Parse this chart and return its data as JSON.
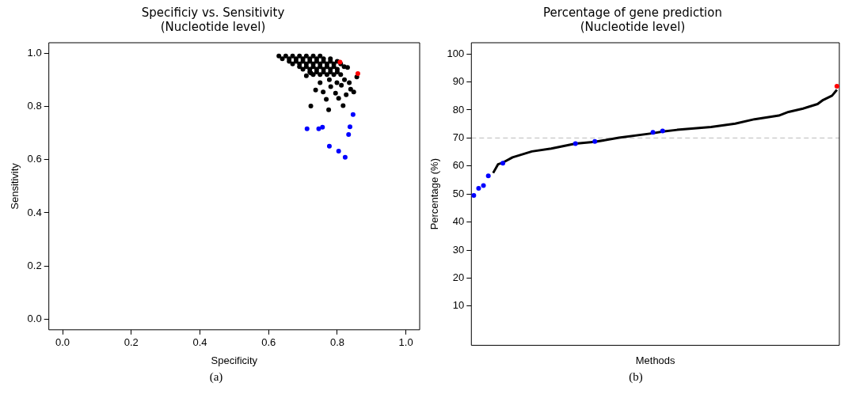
{
  "chart_data": [
    {
      "type": "scatter",
      "title": "Specificiy vs. Sensitivity",
      "subtitle": "(Nucleotide level)",
      "xlabel": "Specificity",
      "ylabel": "Sensitivity",
      "xlim": [
        -0.04,
        1.04
      ],
      "ylim": [
        -0.04,
        1.04
      ],
      "xticks": [
        {
          "value": 0,
          "label": "0.0"
        },
        0.2,
        0.4,
        0.6,
        0.8,
        {
          "value": 1,
          "label": "1.0"
        }
      ],
      "yticks": [
        {
          "value": 0,
          "label": "0.0"
        },
        0.2,
        0.4,
        0.6,
        0.8,
        {
          "value": 1,
          "label": "1.0"
        }
      ],
      "grid": false,
      "legend": false,
      "marker": "circle",
      "annotations": [
        "(a)"
      ],
      "series": [
        {
          "color": "#000000",
          "x": [
            0.63,
            0.65,
            0.67,
            0.69,
            0.71,
            0.73,
            0.75,
            0.64,
            0.66,
            0.68,
            0.7,
            0.72,
            0.74,
            0.76,
            0.78,
            0.66,
            0.68,
            0.7,
            0.72,
            0.74,
            0.76,
            0.78,
            0.8,
            0.67,
            0.69,
            0.71,
            0.73,
            0.75,
            0.77,
            0.79,
            0.81,
            0.69,
            0.71,
            0.73,
            0.75,
            0.77,
            0.79,
            0.82,
            0.7,
            0.72,
            0.74,
            0.76,
            0.78,
            0.8,
            0.72,
            0.74,
            0.76,
            0.78,
            0.8,
            0.73,
            0.75,
            0.77,
            0.79,
            0.81,
            0.723,
            0.775,
            0.817,
            0.848,
            0.857,
            0.83,
            0.737,
            0.768,
            0.804,
            0.795,
            0.826,
            0.839,
            0.812,
            0.799,
            0.781,
            0.759,
            0.75,
            0.71,
            0.723,
            0.777,
            0.821,
            0.835
          ],
          "values": [
            0.99,
            0.99,
            0.99,
            0.99,
            0.99,
            0.99,
            0.99,
            0.98,
            0.98,
            0.98,
            0.98,
            0.98,
            0.98,
            0.98,
            0.98,
            0.97,
            0.97,
            0.97,
            0.97,
            0.97,
            0.97,
            0.97,
            0.97,
            0.96,
            0.96,
            0.96,
            0.96,
            0.96,
            0.96,
            0.96,
            0.96,
            0.95,
            0.95,
            0.95,
            0.95,
            0.95,
            0.95,
            0.95,
            0.94,
            0.94,
            0.94,
            0.94,
            0.94,
            0.94,
            0.93,
            0.93,
            0.93,
            0.93,
            0.93,
            0.92,
            0.92,
            0.92,
            0.92,
            0.92,
            0.802,
            0.788,
            0.803,
            0.855,
            0.911,
            0.947,
            0.862,
            0.827,
            0.831,
            0.85,
            0.844,
            0.865,
            0.88,
            0.89,
            0.875,
            0.855,
            0.89,
            0.916,
            0.926,
            0.901,
            0.901,
            0.89
          ]
        },
        {
          "color": "#0000ff",
          "x": [
            0.712,
            0.746,
            0.757,
            0.846,
            0.837,
            0.833,
            0.777,
            0.804,
            0.823
          ],
          "values": [
            0.716,
            0.716,
            0.722,
            0.77,
            0.724,
            0.695,
            0.651,
            0.632,
            0.609
          ]
        },
        {
          "color": "#ff0000",
          "x": [
            0.808,
            0.86
          ],
          "values": [
            0.967,
            0.924
          ]
        }
      ]
    },
    {
      "type": "line",
      "title": "Percentage of gene prediction",
      "subtitle": "(Nucleotide level)",
      "xlabel": "Methods",
      "ylabel": "Percentage (%)",
      "ylim": [
        -4,
        104
      ],
      "yticks": [
        10,
        20,
        30,
        40,
        50,
        60,
        70,
        80,
        90,
        100
      ],
      "tick_labels": "y",
      "grid": false,
      "legend": false,
      "annotations": [
        "(b)"
      ],
      "ref_lines": [
        {
          "axis": "y",
          "value": 70,
          "color": "#bbbbbb",
          "line_style": "dashed"
        }
      ],
      "categories": [
        null,
        null,
        null,
        null,
        null,
        null,
        null,
        null,
        null,
        null,
        null,
        null,
        null,
        null,
        null,
        null,
        null,
        null,
        null,
        null,
        null,
        null,
        null,
        null,
        null,
        null,
        null,
        null,
        null,
        null,
        null,
        null,
        null,
        null,
        null,
        null,
        null,
        null,
        null,
        null,
        null,
        null,
        null,
        null,
        null,
        null,
        null,
        null,
        null,
        null,
        null,
        null,
        null,
        null,
        null,
        null,
        null,
        null,
        null,
        null,
        null,
        null,
        null,
        null,
        null,
        null,
        null,
        null,
        null,
        null,
        null,
        null,
        null,
        null,
        null,
        null
      ],
      "series": [
        {
          "color": "#000000",
          "marker": "none",
          "values": [
            null,
            null,
            null,
            null,
            57.5,
            60.6,
            61.2,
            null,
            63.1,
            null,
            null,
            null,
            65.2,
            null,
            null,
            null,
            66.2,
            null,
            null,
            null,
            null,
            68,
            null,
            null,
            null,
            68.6,
            null,
            null,
            null,
            null,
            70.1,
            null,
            null,
            null,
            null,
            null,
            null,
            71.7,
            null,
            72.3,
            null,
            null,
            72.9,
            null,
            null,
            null,
            null,
            null,
            null,
            73.9,
            null,
            null,
            null,
            null,
            75.1,
            null,
            null,
            null,
            76.7,
            null,
            null,
            null,
            null,
            78,
            null,
            79.3,
            null,
            null,
            80.5,
            null,
            null,
            82.1,
            83.4,
            null,
            85.1,
            87.2
          ]
        },
        {
          "type": "scatter",
          "color": "#0000ff",
          "marker": "circle",
          "values": [
            49.5,
            52,
            53,
            56.5,
            null,
            null,
            61,
            null,
            null,
            null,
            null,
            null,
            null,
            null,
            null,
            null,
            null,
            null,
            null,
            null,
            null,
            68,
            null,
            null,
            null,
            68.8,
            null,
            null,
            null,
            null,
            null,
            null,
            null,
            null,
            null,
            null,
            null,
            72,
            null,
            72.5,
            null,
            null,
            null,
            null,
            null,
            null,
            null,
            null,
            null,
            null,
            null,
            null,
            null,
            null,
            null,
            null,
            null,
            null,
            null,
            null,
            null,
            null,
            null,
            null,
            null,
            null,
            null,
            null,
            null,
            null,
            null,
            null,
            null,
            null,
            null,
            null
          ]
        },
        {
          "type": "scatter",
          "color": "#ff0000",
          "marker": "circle",
          "values": [
            null,
            null,
            null,
            null,
            null,
            null,
            null,
            null,
            null,
            null,
            null,
            null,
            null,
            null,
            null,
            null,
            null,
            null,
            null,
            null,
            null,
            null,
            null,
            null,
            null,
            null,
            null,
            null,
            null,
            null,
            null,
            null,
            null,
            null,
            null,
            null,
            null,
            null,
            null,
            null,
            null,
            null,
            null,
            null,
            null,
            null,
            null,
            null,
            null,
            null,
            null,
            null,
            null,
            null,
            null,
            null,
            null,
            null,
            null,
            null,
            null,
            null,
            null,
            null,
            null,
            null,
            null,
            null,
            null,
            null,
            null,
            null,
            null,
            null,
            null,
            88.5
          ]
        }
      ]
    }
  ]
}
